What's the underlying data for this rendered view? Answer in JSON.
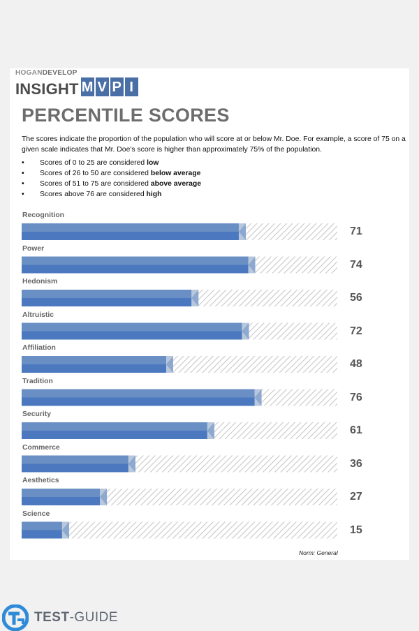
{
  "logo": {
    "top_line_1": "HOGAN",
    "top_line_2": "DEVELOP",
    "word": "INSIGHT",
    "letters": [
      "M",
      "V",
      "P",
      "I"
    ]
  },
  "title": "PERCENTILE SCORES",
  "intro": "The scores indicate the proportion of the population who will score at or below Mr. Doe. For example, a score of 75 on a given scale indicates that Mr. Doe's score is higher than approximately 75% of the population.",
  "bullets": [
    {
      "marker": "•",
      "text": "Scores of 0 to 25 are considered ",
      "bold": "low"
    },
    {
      "marker": "•",
      "text": "Scores of 26 to 50 are considered ",
      "bold": "below average"
    },
    {
      "marker": "•",
      "text": "Scores of 51 to 75 are considered ",
      "bold": "above average"
    },
    {
      "marker": "•",
      "text": "Scores above 76 are considered ",
      "bold": "high"
    }
  ],
  "chart_data": {
    "type": "bar",
    "orientation": "horizontal",
    "categories": [
      "Recognition",
      "Power",
      "Hedonism",
      "Altruistic",
      "Affiliation",
      "Tradition",
      "Security",
      "Commerce",
      "Aesthetics",
      "Science"
    ],
    "values": [
      71,
      74,
      56,
      72,
      48,
      76,
      61,
      36,
      27,
      15
    ],
    "xlim": [
      0,
      100
    ],
    "colors": {
      "bar_top": "#6a8fc4",
      "bar_bottom": "#4b78be",
      "tip": "#b9c7dc",
      "remainder_hatch": "#c8c8c8"
    },
    "note": "Norm: General"
  },
  "footer": {
    "brand_strong": "TEST",
    "brand_rest": "-GUIDE",
    "icon": "tg-logo-icon",
    "accent": "#2f8ad8"
  }
}
